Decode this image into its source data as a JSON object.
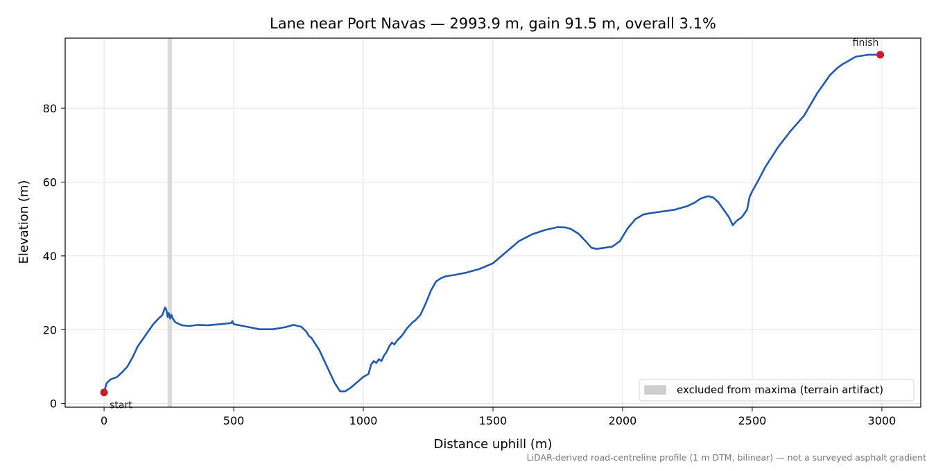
{
  "chart_data": {
    "type": "line",
    "title": "Lane near Port Navas — 2993.9 m, gain 91.5 m, overall 3.1%",
    "xlabel": "Distance uphill (m)",
    "ylabel": "Elevation (m)",
    "xlim": [
      -150,
      3150
    ],
    "ylim": [
      -1,
      99
    ],
    "xticks": [
      0,
      500,
      1000,
      1500,
      2000,
      2500,
      3000
    ],
    "yticks": [
      0,
      20,
      40,
      60,
      80
    ],
    "grid": true,
    "legend_position": "lower-right",
    "series": [
      {
        "color": "#1f5aad",
        "x": [
          0,
          10,
          25,
          50,
          70,
          90,
          110,
          130,
          150,
          170,
          190,
          210,
          225,
          235,
          240,
          245,
          250,
          255,
          260,
          265,
          275,
          300,
          330,
          360,
          400,
          450,
          490,
          495,
          500,
          550,
          600,
          650,
          700,
          730,
          760,
          780,
          790,
          800,
          830,
          860,
          890,
          910,
          930,
          950,
          980,
          1000,
          1020,
          1030,
          1040,
          1050,
          1060,
          1070,
          1080,
          1090,
          1100,
          1110,
          1120,
          1130,
          1150,
          1170,
          1190,
          1200,
          1220,
          1240,
          1260,
          1280,
          1300,
          1320,
          1350,
          1400,
          1450,
          1500,
          1550,
          1600,
          1650,
          1700,
          1750,
          1780,
          1800,
          1830,
          1860,
          1880,
          1900,
          1930,
          1960,
          1990,
          2000,
          2020,
          2050,
          2080,
          2100,
          2150,
          2200,
          2250,
          2280,
          2300,
          2330,
          2350,
          2370,
          2390,
          2410,
          2425,
          2440,
          2460,
          2480,
          2490,
          2500,
          2520,
          2550,
          2600,
          2650,
          2700,
          2750,
          2800,
          2830,
          2850,
          2900,
          2950,
          2993.9
        ],
        "values": [
          3,
          5.5,
          6.5,
          7.2,
          8.5,
          10,
          12.5,
          15.5,
          17.5,
          19.5,
          21.5,
          23,
          24,
          26,
          25.5,
          23.5,
          24.5,
          23,
          24,
          23,
          22,
          21.2,
          21,
          21.3,
          21.2,
          21.5,
          21.8,
          22.3,
          21.5,
          20.8,
          20.1,
          20.1,
          20.7,
          21.3,
          20.8,
          19.5,
          18.3,
          17.8,
          14.5,
          10,
          5.5,
          3.3,
          3.3,
          4.2,
          6,
          7.2,
          8,
          10.5,
          11.5,
          11,
          12,
          11.5,
          13,
          14,
          15.5,
          16.5,
          16,
          17,
          18.5,
          20.5,
          22,
          22.5,
          24,
          27,
          30.5,
          33,
          34,
          34.5,
          34.8,
          35.5,
          36.5,
          38,
          41,
          44,
          45.8,
          47,
          47.8,
          47.7,
          47.3,
          46,
          43.8,
          42.2,
          41.9,
          42.2,
          42.5,
          44,
          45.2,
          47.5,
          50,
          51.2,
          51.5,
          52,
          52.5,
          53.5,
          54.5,
          55.5,
          56.2,
          55.8,
          54.5,
          52.5,
          50.5,
          48.3,
          49.5,
          50.5,
          52.5,
          56,
          57.5,
          60,
          64,
          69.5,
          74,
          78,
          84,
          89,
          91,
          92,
          94,
          94.5,
          94.5
        ]
      }
    ],
    "markers": [
      {
        "x": 0,
        "y": 3,
        "label": "start"
      },
      {
        "x": 2993.9,
        "y": 94.5,
        "label": "finish"
      }
    ],
    "excluded_span": {
      "x": [
        245,
        262
      ],
      "label": "excluded from maxima (terrain artifact)"
    },
    "marker_color": "#c81e28",
    "band_color": "#cfcfcf",
    "footnote": "LiDAR-derived road-centreline profile (1 m DTM, bilinear) — not a surveyed asphalt gradient"
  }
}
